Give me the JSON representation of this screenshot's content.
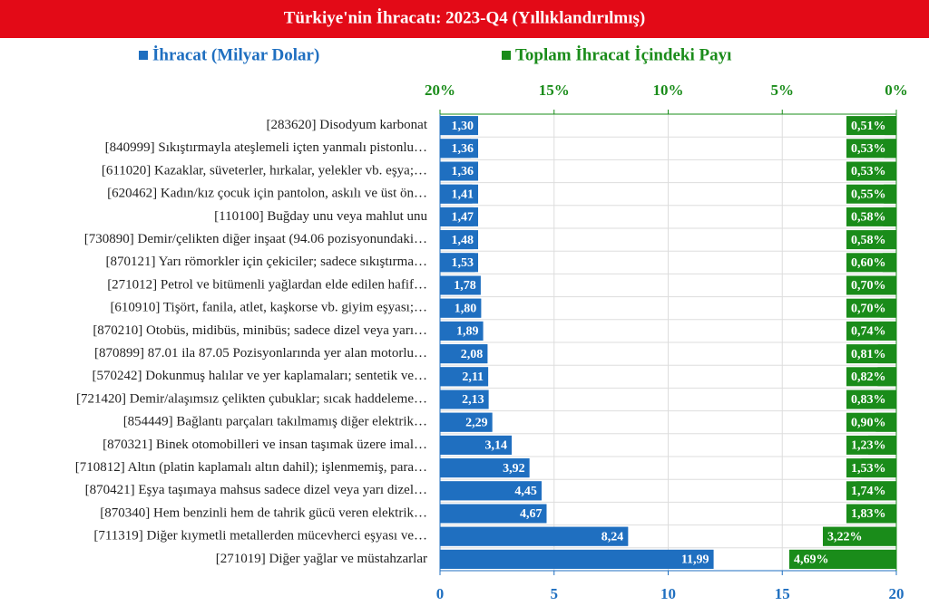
{
  "chart_data": {
    "type": "bar",
    "orientation": "horizontal",
    "title": "Türkiye'nin İhracatı: 2023-Q4 (Yıllıklandırılmış)",
    "categories": [
      "[283620] Disodyum karbonat",
      "[840999] Sıkıştırmayla ateşlemeli içten yanmalı pistonlu…",
      "[611020] Kazaklar, süveterler, hırkalar, yelekler vb. eşya;…",
      "[620462] Kadın/kız çocuk için pantolon, askılı ve üst ön…",
      "[110100] Buğday unu veya mahlut unu",
      "[730890] Demir/çelikten diğer inşaat (94.06 pozisyonundaki…",
      "[870121] Yarı römorkler için çekiciler; sadece sıkıştırma…",
      "[271012] Petrol ve bitümenli yağlardan elde edilen hafif…",
      "[610910] Tişört, fanila, atlet, kaşkorse vb. giyim eşyası;…",
      "[870210] Otobüs, midibüs, minibüs; sadece dizel veya yarı…",
      "[870899] 87.01 ila 87.05 Pozisyonlarında yer alan motorlu…",
      "[570242] Dokunmuş halılar ve yer kaplamaları; sentetik ve…",
      "[721420] Demir/alaşımsız çelikten çubuklar; sıcak haddeleme…",
      "[854449] Bağlantı parçaları takılmamış diğer elektrik…",
      "[870321] Binek otomobilleri ve insan taşımak üzere imal…",
      "[710812] Altın (platin kaplamalı altın dahil); işlenmemiş, para…",
      "[870421] Eşya taşımaya mahsus sadece dizel veya yarı dizel…",
      "[870340] Hem benzinli hem de tahrik gücü veren elektrik…",
      "[711319] Diğer kıymetli metallerden mücevherci eşyası ve…",
      "[271019] Diğer yağlar ve müstahzarlar"
    ],
    "series": [
      {
        "name": "İhracat (Milyar Dolar)",
        "color": "#1f6fc0",
        "axis": "x",
        "values": [
          1.3,
          1.36,
          1.36,
          1.41,
          1.47,
          1.48,
          1.53,
          1.78,
          1.8,
          1.89,
          2.08,
          2.11,
          2.13,
          2.29,
          3.14,
          3.92,
          4.45,
          4.67,
          8.24,
          11.99
        ],
        "value_labels": [
          "1,30",
          "1,36",
          "1,36",
          "1,41",
          "1,47",
          "1,48",
          "1,53",
          "1,78",
          "1,80",
          "1,89",
          "2,08",
          "2,11",
          "2,13",
          "2,29",
          "3,14",
          "3,92",
          "4,45",
          "4,67",
          "8,24",
          "11,99"
        ]
      },
      {
        "name": "Toplam İhracat İçindeki Payı",
        "color": "#1a8c1a",
        "axis": "x2",
        "values": [
          0.51,
          0.53,
          0.53,
          0.55,
          0.58,
          0.58,
          0.6,
          0.7,
          0.7,
          0.74,
          0.81,
          0.82,
          0.83,
          0.9,
          1.23,
          1.53,
          1.74,
          1.83,
          3.22,
          4.69
        ],
        "value_labels": [
          "0,51%",
          "0,53%",
          "0,53%",
          "0,55%",
          "0,58%",
          "0,58%",
          "0,60%",
          "0,70%",
          "0,70%",
          "0,74%",
          "0,81%",
          "0,82%",
          "0,83%",
          "0,90%",
          "1,23%",
          "1,53%",
          "1,74%",
          "1,83%",
          "3,22%",
          "4,69%"
        ]
      }
    ],
    "xlim": [
      0,
      20
    ],
    "xticks": [
      0,
      5,
      10,
      15,
      20
    ],
    "x2lim": [
      20,
      0
    ],
    "x2ticks": [
      {
        "value": 20,
        "label": "20%"
      },
      {
        "value": 15,
        "label": "15%"
      },
      {
        "value": 10,
        "label": "10%"
      },
      {
        "value": 5,
        "label": "5%"
      },
      {
        "value": 0,
        "label": "0%"
      }
    ],
    "grid": true
  }
}
